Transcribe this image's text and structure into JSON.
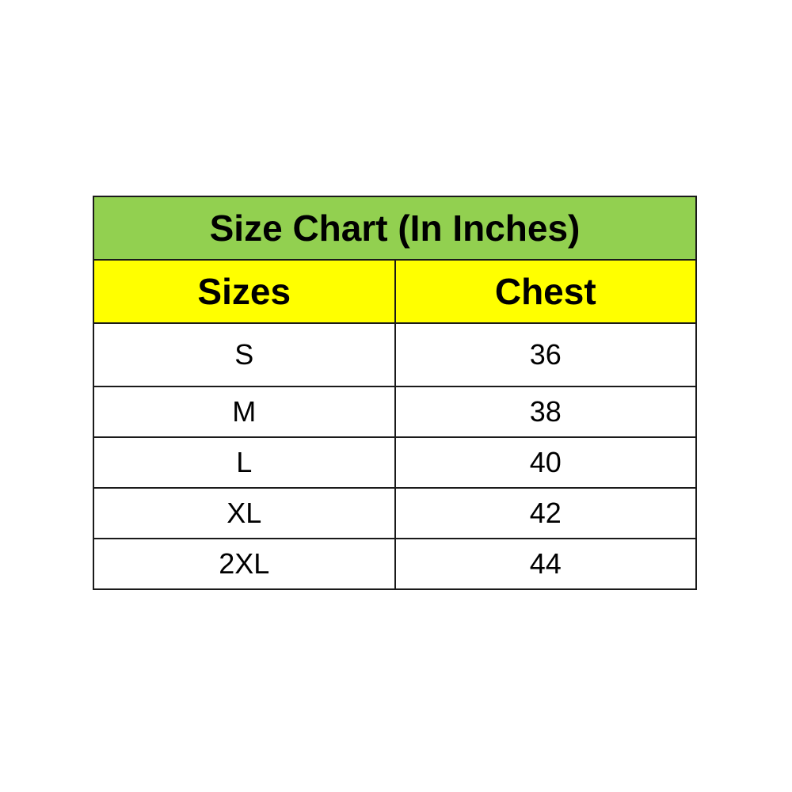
{
  "title": "Size Chart (In Inches)",
  "headers": [
    "Sizes",
    "Chest"
  ],
  "rows": [
    {
      "size": "S",
      "chest": "36"
    },
    {
      "size": "M",
      "chest": "38"
    },
    {
      "size": "L",
      "chest": "40"
    },
    {
      "size": "XL",
      "chest": "42"
    },
    {
      "size": "2XL",
      "chest": "44"
    }
  ],
  "colors": {
    "title_bg": "#92D050",
    "header_bg": "#FFFF00"
  }
}
